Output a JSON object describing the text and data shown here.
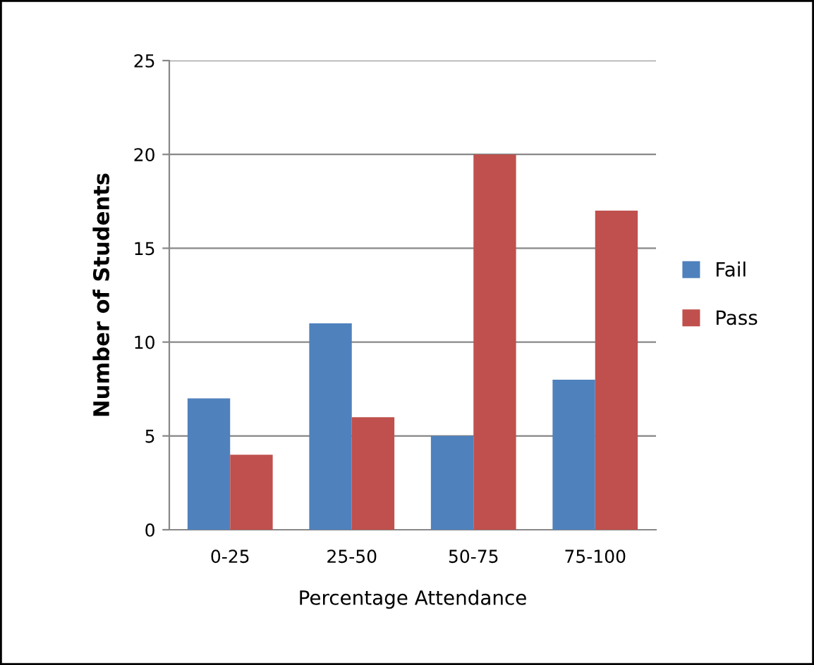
{
  "chart_data": {
    "type": "bar",
    "xlabel": "Percentage Attendance",
    "ylabel": "Number of Students",
    "categories": [
      "0-25",
      "25-50",
      "50-75",
      "75-100"
    ],
    "series": [
      {
        "name": "Fail",
        "color": "#4f81bd",
        "values": [
          7,
          11,
          5,
          8
        ]
      },
      {
        "name": "Pass",
        "color": "#c0504d",
        "values": [
          4,
          6,
          20,
          17
        ]
      }
    ],
    "ylim": [
      0,
      25
    ],
    "yticks": [
      0,
      5,
      10,
      15,
      20,
      25
    ],
    "grid": "y",
    "legend": "right"
  }
}
